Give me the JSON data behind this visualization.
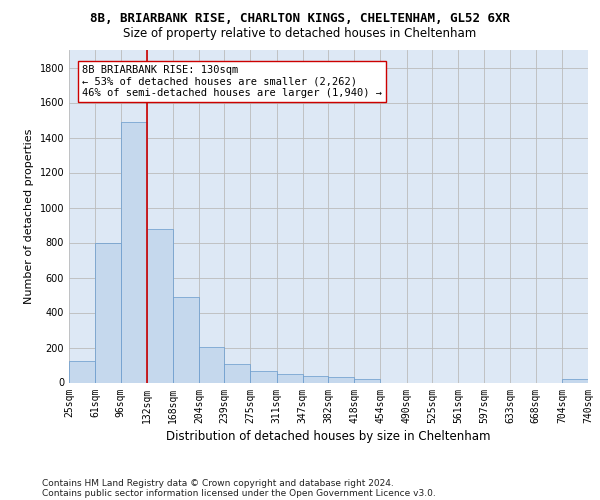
{
  "title": "8B, BRIARBANK RISE, CHARLTON KINGS, CHELTENHAM, GL52 6XR",
  "subtitle": "Size of property relative to detached houses in Cheltenham",
  "xlabel": "Distribution of detached houses by size in Cheltenham",
  "ylabel": "Number of detached properties",
  "footer_line1": "Contains HM Land Registry data © Crown copyright and database right 2024.",
  "footer_line2": "Contains public sector information licensed under the Open Government Licence v3.0.",
  "bin_labels": [
    "25sqm",
    "61sqm",
    "96sqm",
    "132sqm",
    "168sqm",
    "204sqm",
    "239sqm",
    "275sqm",
    "311sqm",
    "347sqm",
    "382sqm",
    "418sqm",
    "454sqm",
    "490sqm",
    "525sqm",
    "561sqm",
    "597sqm",
    "633sqm",
    "668sqm",
    "704sqm",
    "740sqm"
  ],
  "bar_values": [
    125,
    800,
    1490,
    880,
    490,
    205,
    105,
    65,
    50,
    35,
    30,
    20,
    0,
    0,
    0,
    0,
    0,
    0,
    0,
    20
  ],
  "bin_edges": [
    25,
    61,
    96,
    132,
    168,
    204,
    239,
    275,
    311,
    347,
    382,
    418,
    454,
    490,
    525,
    561,
    597,
    633,
    668,
    704,
    740
  ],
  "bar_color": "#c5d8ed",
  "bar_edgecolor": "#6699cc",
  "grid_color": "#bbbbbb",
  "plot_bg_color": "#dde8f5",
  "property_line_x": 132,
  "property_line_color": "#cc0000",
  "annotation_text": "8B BRIARBANK RISE: 130sqm\n← 53% of detached houses are smaller (2,262)\n46% of semi-detached houses are larger (1,940) →",
  "annotation_box_edgecolor": "#cc0000",
  "annotation_box_facecolor": "#ffffff",
  "ylim": [
    0,
    1900
  ],
  "yticks": [
    0,
    200,
    400,
    600,
    800,
    1000,
    1200,
    1400,
    1600,
    1800
  ],
  "background_color": "#ffffff",
  "title_fontsize": 9,
  "subtitle_fontsize": 8.5,
  "ylabel_fontsize": 8,
  "xlabel_fontsize": 8.5,
  "tick_fontsize": 7,
  "annotation_fontsize": 7.5,
  "footer_fontsize": 6.5
}
